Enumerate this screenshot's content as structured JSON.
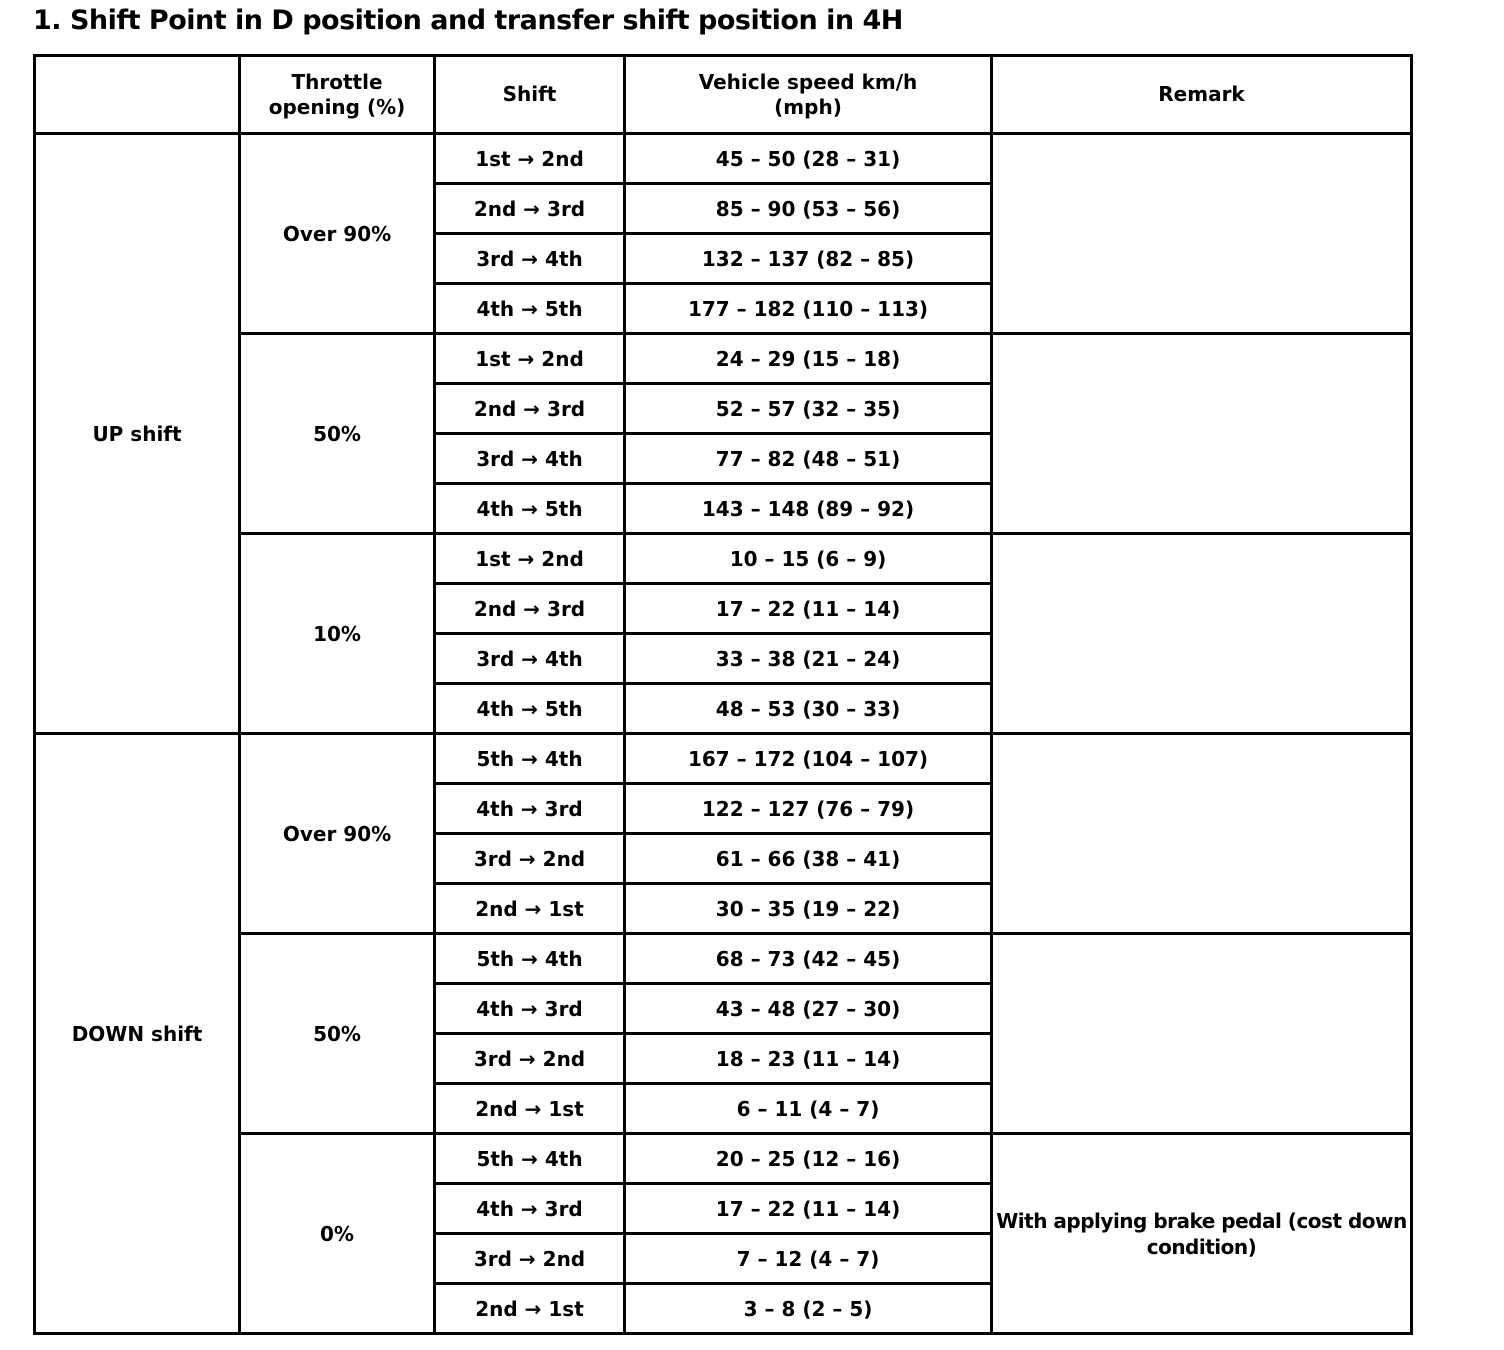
{
  "page": {
    "title": "1. Shift Point in D position and transfer shift position in 4H"
  },
  "table": {
    "headers": {
      "group": "",
      "throttle": "Throttle\nopening (%)",
      "shift": "Shift",
      "speed": "Vehicle speed km/h\n(mph)",
      "remark": "Remark"
    },
    "sections": [
      {
        "label": "UP shift",
        "groups": [
          {
            "throttle": "Over 90%",
            "remark": "",
            "rows": [
              {
                "shift": "1st → 2nd",
                "speed": "45 – 50 (28 – 31)"
              },
              {
                "shift": "2nd → 3rd",
                "speed": "85 – 90 (53 – 56)"
              },
              {
                "shift": "3rd → 4th",
                "speed": "132 – 137 (82 – 85)"
              },
              {
                "shift": "4th → 5th",
                "speed": "177 – 182 (110 – 113)"
              }
            ]
          },
          {
            "throttle": "50%",
            "remark": "",
            "rows": [
              {
                "shift": "1st → 2nd",
                "speed": "24 – 29 (15 – 18)"
              },
              {
                "shift": "2nd → 3rd",
                "speed": "52 – 57 (32 – 35)"
              },
              {
                "shift": "3rd → 4th",
                "speed": "77 – 82 (48 – 51)"
              },
              {
                "shift": "4th → 5th",
                "speed": "143 – 148 (89 – 92)"
              }
            ]
          },
          {
            "throttle": "10%",
            "remark": "",
            "rows": [
              {
                "shift": "1st → 2nd",
                "speed": "10 – 15 (6 – 9)"
              },
              {
                "shift": "2nd → 3rd",
                "speed": "17 – 22 (11 – 14)"
              },
              {
                "shift": "3rd → 4th",
                "speed": "33 – 38 (21 – 24)"
              },
              {
                "shift": "4th → 5th",
                "speed": "48 – 53 (30 – 33)"
              }
            ]
          }
        ]
      },
      {
        "label": "DOWN shift",
        "groups": [
          {
            "throttle": "Over 90%",
            "remark": "",
            "rows": [
              {
                "shift": "5th → 4th",
                "speed": "167 – 172 (104 – 107)"
              },
              {
                "shift": "4th → 3rd",
                "speed": "122 – 127 (76 – 79)"
              },
              {
                "shift": "3rd → 2nd",
                "speed": "61 – 66 (38 – 41)"
              },
              {
                "shift": "2nd → 1st",
                "speed": "30 – 35 (19 – 22)"
              }
            ]
          },
          {
            "throttle": "50%",
            "remark": "",
            "rows": [
              {
                "shift": "5th → 4th",
                "speed": "68 – 73 (42 – 45)"
              },
              {
                "shift": "4th → 3rd",
                "speed": "43 – 48 (27 – 30)"
              },
              {
                "shift": "3rd → 2nd",
                "speed": "18 – 23 (11 – 14)"
              },
              {
                "shift": "2nd → 1st",
                "speed": "6 – 11 (4 – 7)"
              }
            ]
          },
          {
            "throttle": "0%",
            "remark": "With applying brake pedal (cost down condition)",
            "rows": [
              {
                "shift": "5th → 4th",
                "speed": "20 – 25 (12 – 16)"
              },
              {
                "shift": "4th → 3rd",
                "speed": "17 – 22 (11 – 14)"
              },
              {
                "shift": "3rd → 2nd",
                "speed": "7 – 12 (4 – 7)"
              },
              {
                "shift": "2nd → 1st",
                "speed": "3 – 8 (2 – 5)"
              }
            ]
          }
        ]
      }
    ]
  }
}
